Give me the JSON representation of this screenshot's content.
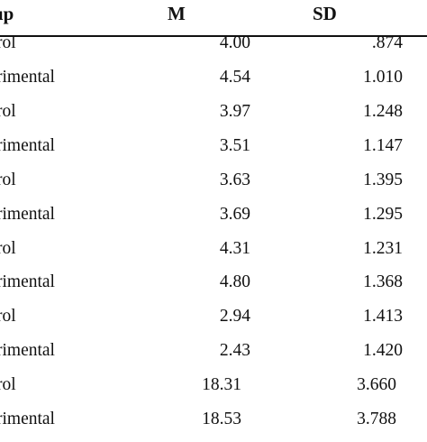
{
  "table": {
    "headers": {
      "group": "up",
      "m": "M",
      "sd": "SD"
    },
    "rows": [
      {
        "group": "rol",
        "m": "4.00",
        "sd": ".874"
      },
      {
        "group": "rimental",
        "m": "4.54",
        "sd": "1.010"
      },
      {
        "group": "rol",
        "m": "3.97",
        "sd": "1.248"
      },
      {
        "group": "rimental",
        "m": "3.51",
        "sd": "1.147"
      },
      {
        "group": "rol",
        "m": "3.63",
        "sd": "1.395"
      },
      {
        "group": "rimental",
        "m": "3.69",
        "sd": "1.295"
      },
      {
        "group": "rol",
        "m": "4.31",
        "sd": "1.231"
      },
      {
        "group": "rimental",
        "m": "4.80",
        "sd": "1.368"
      },
      {
        "group": "rol",
        "m": "2.94",
        "sd": "1.413"
      },
      {
        "group": "rimental",
        "m": "2.43",
        "sd": "1.420"
      },
      {
        "group": "rol",
        "m": "18.31",
        "sd": "3.660"
      },
      {
        "group": "rimental",
        "m": "18.53",
        "sd": "3.788"
      }
    ]
  }
}
